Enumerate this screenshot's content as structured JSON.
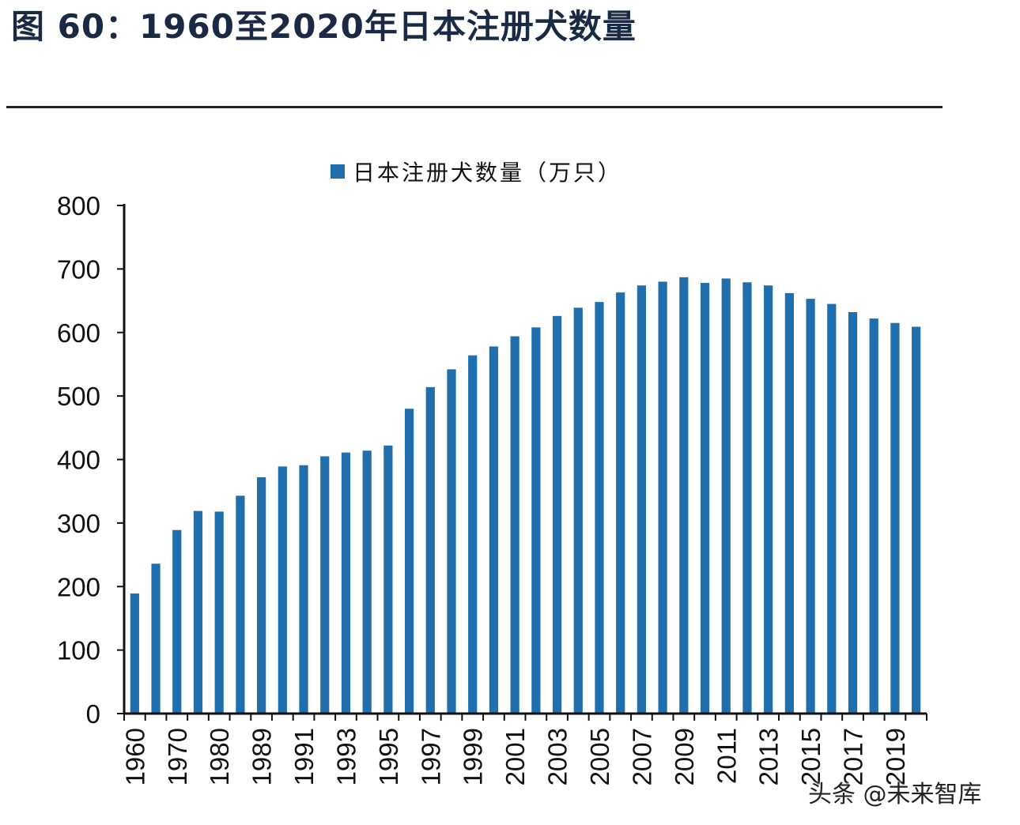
{
  "figure_title": "图 60：1960至2020年日本注册犬数量",
  "watermark": "头条 @未来智库",
  "chart_data": {
    "type": "bar",
    "legend": [
      "日本注册犬数量（万只）"
    ],
    "legend_position": "top-center",
    "color": "#1f6fae",
    "categories": [
      "1960",
      "1965",
      "1970",
      "1975",
      "1980",
      "1985",
      "1989",
      "1990",
      "1991",
      "1992",
      "1993",
      "1994",
      "1995",
      "1996",
      "1997",
      "1998",
      "1999",
      "2000",
      "2001",
      "2002",
      "2003",
      "2004",
      "2005",
      "2006",
      "2007",
      "2008",
      "2009",
      "2010",
      "2011",
      "2012",
      "2013",
      "2014",
      "2015",
      "2016",
      "2017",
      "2018",
      "2019",
      "2020"
    ],
    "x_tick_labels": [
      "1960",
      "1970",
      "1980",
      "1989",
      "1991",
      "1993",
      "1995",
      "1997",
      "1999",
      "2001",
      "2003",
      "2005",
      "2007",
      "2009",
      "2011",
      "2013",
      "2015",
      "2017",
      "2019"
    ],
    "series": [
      {
        "name": "日本注册犬数量（万只）",
        "values": [
          189,
          236,
          289,
          319,
          318,
          343,
          372,
          389,
          391,
          405,
          411,
          414,
          422,
          480,
          514,
          542,
          564,
          578,
          594,
          608,
          626,
          639,
          648,
          663,
          674,
          680,
          687,
          678,
          685,
          679,
          674,
          662,
          653,
          645,
          632,
          622,
          615,
          609
        ]
      }
    ],
    "yticks": [
      "0",
      "100",
      "200",
      "300",
      "400",
      "500",
      "600",
      "700",
      "800"
    ],
    "ylim": [
      0,
      800
    ],
    "grid": false
  }
}
